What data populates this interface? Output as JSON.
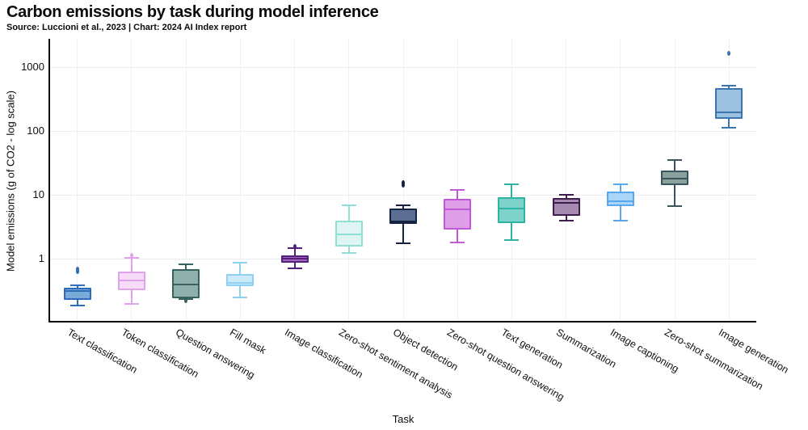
{
  "chart_data": {
    "type": "box",
    "title": "Carbon emissions by task during model inference",
    "subtitle": "Source: Luccioni et al., 2023 | Chart: 2024 AI Index report",
    "xlabel": "Task",
    "ylabel": "Model emissions (g of CO2 - log scale)",
    "y_scale": "log",
    "y_ticks": [
      1,
      10,
      100,
      1000
    ],
    "ylim": [
      0.108,
      2770
    ],
    "grid": true,
    "legend": false,
    "categories": [
      "Text classification",
      "Token classification",
      "Question answering",
      "Fill mask",
      "Image classification",
      "Zero-shot sentiment analysis",
      "Object detection",
      "Zero-shot question answering",
      "Text generation",
      "Summarization",
      "Image captioning",
      "Zero-shot summarization",
      "Image generation"
    ],
    "series": [
      {
        "task": "Text classification",
        "whisker_low": 0.19,
        "q1": 0.23,
        "median": 0.32,
        "q3": 0.36,
        "whisker_high": 0.39,
        "outliers": [
          0.63,
          0.69
        ],
        "fill": "#79aad9",
        "stroke": "#2e6db5"
      },
      {
        "task": "Token classification",
        "whisker_low": 0.2,
        "q1": 0.33,
        "median": 0.46,
        "q3": 0.64,
        "whisker_high": 1.05,
        "outliers": [
          1.15
        ],
        "fill": "#f6dcf8",
        "stroke": "#dfa3e9"
      },
      {
        "task": "Question answering",
        "whisker_low": 0.235,
        "q1": 0.245,
        "median": 0.4,
        "q3": 0.7,
        "whisker_high": 0.83,
        "outliers": [
          0.225
        ],
        "fill": "#8fb0ab",
        "stroke": "#36635e"
      },
      {
        "task": "Fill mask",
        "whisker_low": 0.25,
        "q1": 0.38,
        "median": 0.43,
        "q3": 0.58,
        "whisker_high": 0.88,
        "outliers": [],
        "fill": "#cdeafa",
        "stroke": "#8fd1f2"
      },
      {
        "task": "Image classification",
        "whisker_low": 0.71,
        "q1": 0.88,
        "median": 1.0,
        "q3": 1.14,
        "whisker_high": 1.48,
        "outliers": [
          1.56
        ],
        "fill": "#a465bb",
        "stroke": "#50207a"
      },
      {
        "task": "Zero-shot sentiment analysis",
        "whisker_low": 1.25,
        "q1": 1.57,
        "median": 2.4,
        "q3": 3.95,
        "whisker_high": 6.9,
        "outliers": [],
        "fill": "#dff5f3",
        "stroke": "#8fdfd7"
      },
      {
        "task": "Object detection",
        "whisker_low": 1.76,
        "q1": 3.55,
        "median": 3.85,
        "q3": 6.2,
        "whisker_high": 6.9,
        "outliers": [
          14.5,
          15.5
        ],
        "fill": "#5c6e93",
        "stroke": "#152342"
      },
      {
        "task": "Zero-shot question answering",
        "whisker_low": 1.8,
        "q1": 2.9,
        "median": 5.9,
        "q3": 8.7,
        "whisker_high": 12.0,
        "outliers": [],
        "fill": "#dd9fe7",
        "stroke": "#c158d6"
      },
      {
        "task": "Text generation",
        "whisker_low": 2.0,
        "q1": 3.6,
        "median": 6.2,
        "q3": 9.2,
        "whisker_high": 14.6,
        "outliers": [],
        "fill": "#7fd2ca",
        "stroke": "#2eb3a5"
      },
      {
        "task": "Summarization",
        "whisker_low": 4.0,
        "q1": 4.8,
        "median": 7.6,
        "q3": 9.1,
        "whisker_high": 10.0,
        "outliers": [],
        "fill": "#a58bb0",
        "stroke": "#3f1d4e"
      },
      {
        "task": "Image captioning",
        "whisker_low": 4.0,
        "q1": 6.7,
        "median": 7.9,
        "q3": 11.3,
        "whisker_high": 14.9,
        "outliers": [],
        "fill": "#abd5f8",
        "stroke": "#5aa7ee"
      },
      {
        "task": "Zero-shot summarization",
        "whisker_low": 6.7,
        "q1": 14.3,
        "median": 18.2,
        "q3": 24.4,
        "whisker_high": 34.9,
        "outliers": [],
        "fill": "#8ba19e",
        "stroke": "#39565c"
      },
      {
        "task": "Image generation",
        "whisker_low": 112,
        "q1": 154,
        "median": 196,
        "q3": 469,
        "whisker_high": 507,
        "outliers": [
          1650
        ],
        "fill": "#9dc2e1",
        "stroke": "#3a75ae"
      }
    ]
  }
}
